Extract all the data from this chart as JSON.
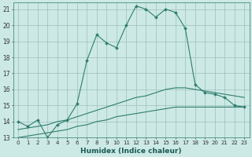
{
  "xlabel": "Humidex (Indice chaleur)",
  "ylabel": "",
  "xlim": [
    -0.5,
    23.5
  ],
  "ylim": [
    13,
    21.4
  ],
  "yticks": [
    13,
    14,
    15,
    16,
    17,
    18,
    19,
    20,
    21
  ],
  "xticks": [
    0,
    1,
    2,
    3,
    4,
    5,
    6,
    7,
    8,
    9,
    10,
    11,
    12,
    13,
    14,
    15,
    16,
    17,
    18,
    19,
    20,
    21,
    22,
    23
  ],
  "background_color": "#cce9e5",
  "grid_color": "#9dbfbb",
  "line_color": "#2e7d6e",
  "line1_x": [
    0,
    1,
    2,
    3,
    4,
    5,
    6,
    7,
    8,
    9,
    10,
    11,
    12,
    13,
    14,
    15,
    16,
    17,
    18,
    19,
    20,
    21,
    22,
    23
  ],
  "line1_y": [
    14.0,
    13.7,
    14.1,
    13.0,
    13.8,
    14.1,
    15.1,
    17.8,
    19.4,
    18.9,
    18.6,
    20.0,
    21.2,
    21.0,
    20.5,
    21.0,
    20.8,
    19.8,
    16.3,
    15.8,
    15.7,
    15.5,
    15.0,
    14.9
  ],
  "line2_x": [
    0,
    1,
    2,
    3,
    4,
    5,
    6,
    7,
    8,
    9,
    10,
    11,
    12,
    13,
    14,
    15,
    16,
    17,
    18,
    19,
    20,
    21,
    22,
    23
  ],
  "line2_y": [
    13.5,
    13.6,
    13.7,
    13.8,
    14.0,
    14.1,
    14.3,
    14.5,
    14.7,
    14.9,
    15.1,
    15.3,
    15.5,
    15.6,
    15.8,
    16.0,
    16.1,
    16.1,
    16.0,
    15.9,
    15.8,
    15.7,
    15.6,
    15.5
  ],
  "line3_x": [
    0,
    1,
    2,
    3,
    4,
    5,
    6,
    7,
    8,
    9,
    10,
    11,
    12,
    13,
    14,
    15,
    16,
    17,
    18,
    19,
    20,
    21,
    22,
    23
  ],
  "line3_y": [
    13.0,
    13.1,
    13.2,
    13.3,
    13.4,
    13.5,
    13.7,
    13.8,
    14.0,
    14.1,
    14.3,
    14.4,
    14.5,
    14.6,
    14.7,
    14.8,
    14.9,
    14.9,
    14.9,
    14.9,
    14.9,
    14.9,
    14.9,
    14.9
  ]
}
